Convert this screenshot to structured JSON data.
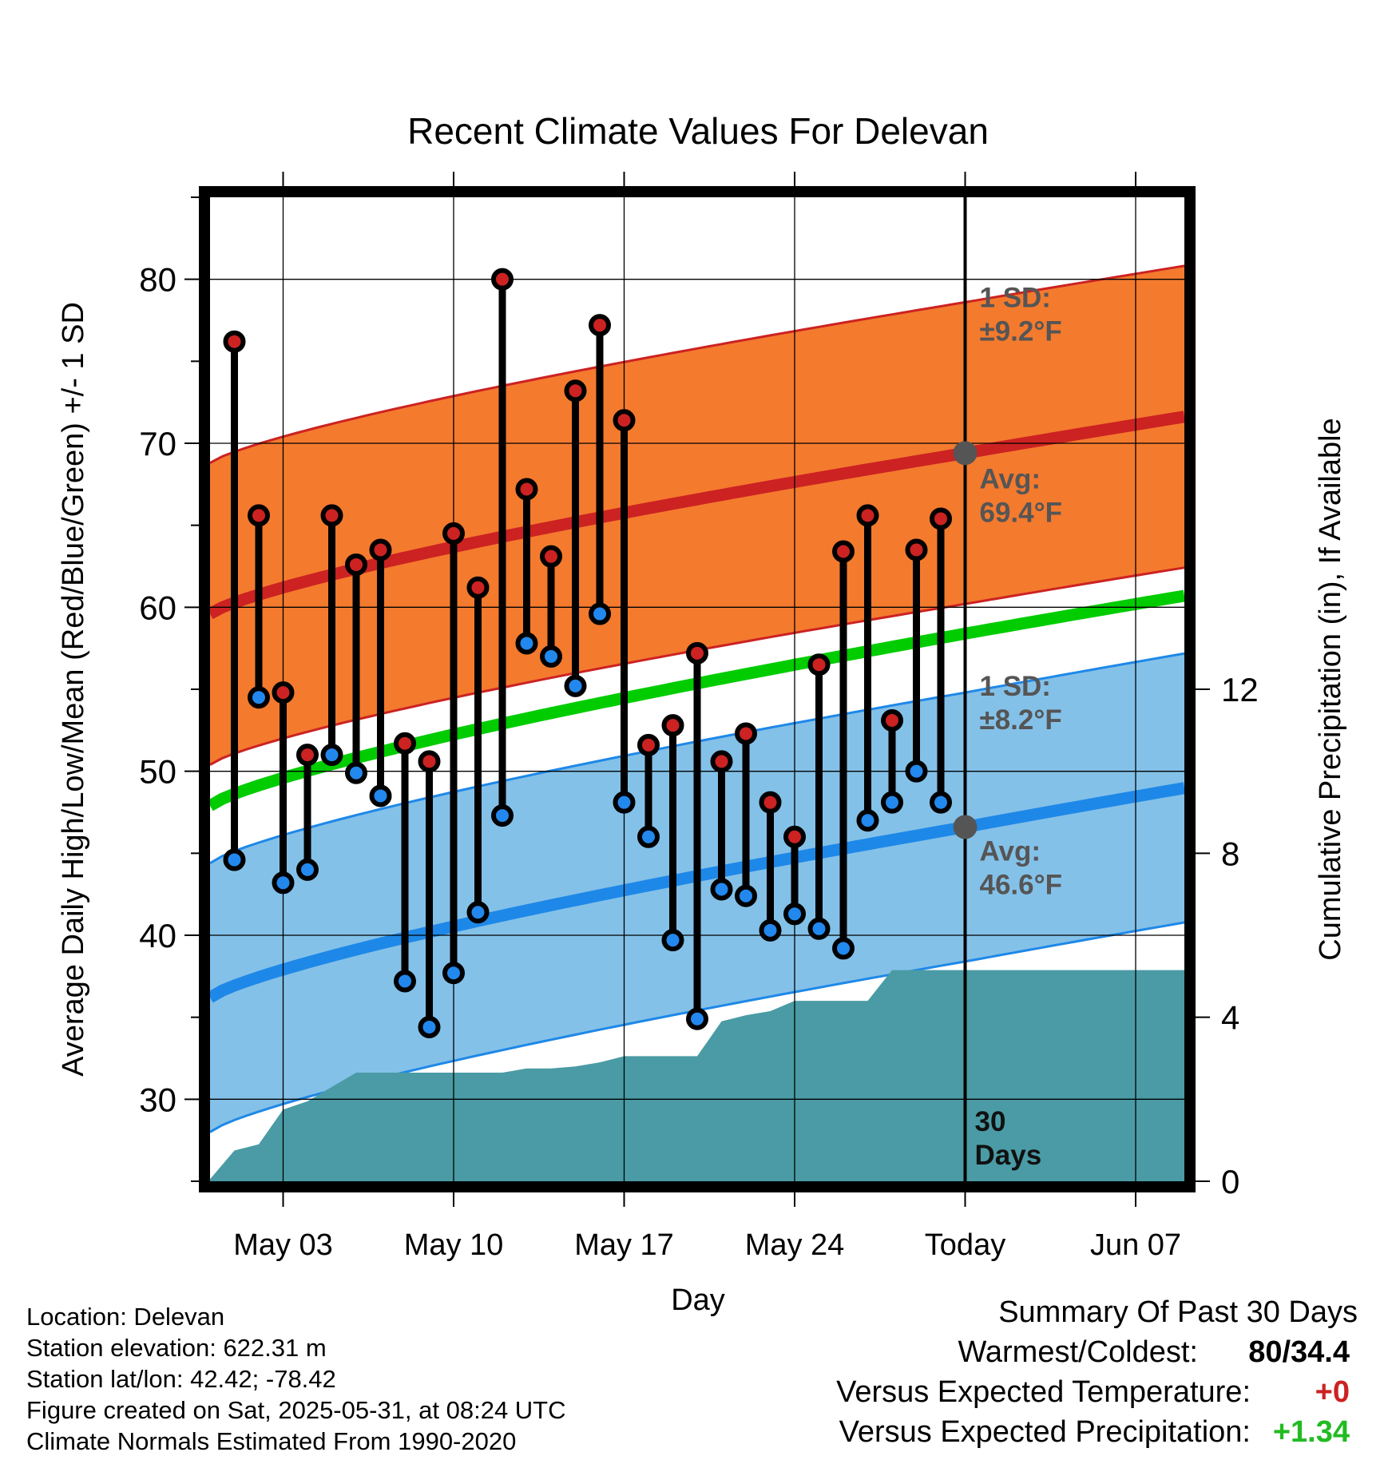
{
  "chart_data": {
    "type": "line",
    "title": "Recent Climate Values For Delevan",
    "xlabel": "Day",
    "ylabel": "Average Daily High/Low/Mean (Red/Blue/Green) +/- 1 SD",
    "ylabel_right": "Cumulative Precipitation (in), If Available",
    "x_ticks": [
      "May 03",
      "May 10",
      "May 17",
      "May 24",
      "Today",
      "Jun 07"
    ],
    "y_ticks": [
      30,
      40,
      50,
      60,
      70,
      80
    ],
    "y_right_ticks": [
      0,
      4,
      8,
      12
    ],
    "xlim": [
      "2025-04-30",
      "2025-06-09"
    ],
    "ylim": [
      25,
      85
    ],
    "y_right_lim": [
      0,
      24
    ],
    "today": "2025-05-31",
    "today_label": "Today",
    "window_label": [
      "30",
      "Days"
    ],
    "dates": [
      "2025-05-01",
      "2025-05-02",
      "2025-05-03",
      "2025-05-04",
      "2025-05-05",
      "2025-05-06",
      "2025-05-07",
      "2025-05-08",
      "2025-05-09",
      "2025-05-10",
      "2025-05-11",
      "2025-05-12",
      "2025-05-13",
      "2025-05-14",
      "2025-05-15",
      "2025-05-16",
      "2025-05-17",
      "2025-05-18",
      "2025-05-19",
      "2025-05-20",
      "2025-05-21",
      "2025-05-22",
      "2025-05-23",
      "2025-05-24",
      "2025-05-25",
      "2025-05-26",
      "2025-05-27",
      "2025-05-28",
      "2025-05-29",
      "2025-05-30"
    ],
    "series": [
      {
        "name": "High",
        "color": "#cc2222",
        "values": [
          76.2,
          65.6,
          54.8,
          51.0,
          65.6,
          62.6,
          63.5,
          51.7,
          50.6,
          64.5,
          61.2,
          80.0,
          67.2,
          63.1,
          73.2,
          77.2,
          71.4,
          51.6,
          52.8,
          57.2,
          50.6,
          52.3,
          48.1,
          46.0,
          56.5,
          63.4,
          65.6,
          53.1,
          63.5,
          65.4
        ]
      },
      {
        "name": "Low",
        "color": "#2288ee",
        "values": [
          44.6,
          54.5,
          43.2,
          44.0,
          51.0,
          49.9,
          48.5,
          37.2,
          34.4,
          37.7,
          41.4,
          47.3,
          57.8,
          57.0,
          55.2,
          59.6,
          48.1,
          46.0,
          39.7,
          34.9,
          42.8,
          42.4,
          40.3,
          41.3,
          40.4,
          39.2,
          47.0,
          48.1,
          50.0,
          48.1
        ]
      }
    ],
    "normals": {
      "high": {
        "start": 59.6,
        "today": 69.4,
        "end": 71.9,
        "sd": 9.2,
        "color": "#cc2222",
        "band_color": "#f47a2e"
      },
      "low": {
        "start": 36.2,
        "today": 46.6,
        "end": 49.4,
        "sd": 8.2,
        "color": "#1e88e8",
        "band_color": "#84c1e8"
      },
      "mean": {
        "start": 47.9,
        "end": 60.7,
        "color": "#00cc00"
      }
    },
    "annotations": {
      "high_sd": [
        "1 SD:",
        "±9.2°F"
      ],
      "high_avg": [
        "Avg:",
        "69.4°F"
      ],
      "low_sd": [
        "1 SD:",
        "±8.2°F"
      ],
      "low_avg": [
        "Avg:",
        "46.6°F"
      ]
    },
    "precip": {
      "color": "#4a9ba5",
      "dates": [
        "2025-04-30",
        "2025-05-01",
        "2025-05-02",
        "2025-05-03",
        "2025-05-04",
        "2025-05-05",
        "2025-05-06",
        "2025-05-07",
        "2025-05-08",
        "2025-05-09",
        "2025-05-10",
        "2025-05-11",
        "2025-05-12",
        "2025-05-13",
        "2025-05-14",
        "2025-05-15",
        "2025-05-16",
        "2025-05-17",
        "2025-05-18",
        "2025-05-19",
        "2025-05-20",
        "2025-05-21",
        "2025-05-22",
        "2025-05-23",
        "2025-05-24",
        "2025-05-25",
        "2025-05-26",
        "2025-05-27",
        "2025-05-28",
        "2025-05-29",
        "2025-05-30",
        "2025-05-31",
        "2025-06-09"
      ],
      "values": [
        0.05,
        0.75,
        0.9,
        1.75,
        1.95,
        2.3,
        2.65,
        2.65,
        2.65,
        2.65,
        2.65,
        2.65,
        2.65,
        2.75,
        2.75,
        2.8,
        2.9,
        3.05,
        3.05,
        3.05,
        3.05,
        3.9,
        4.05,
        4.15,
        4.4,
        4.4,
        4.4,
        4.4,
        5.15,
        5.15,
        5.15,
        5.15,
        5.15
      ]
    }
  },
  "footer": {
    "location": "Location: Delevan",
    "elevation": "Station elevation: 622.31 m",
    "latlon": "Station lat/lon: 42.42; -78.42",
    "created": "Figure created on Sat, 2025-05-31, at 08:24 UTC",
    "normals": "Climate Normals Estimated From 1990-2020"
  },
  "summary": {
    "title": "Summary Of Past 30 Days",
    "warmest_label": "Warmest/Coldest:",
    "warmest_value": "80/34.4",
    "temp_label": "Versus Expected Temperature:",
    "temp_value": "+0",
    "temp_color": "#cc2222",
    "precip_label": "Versus Expected Precipitation:",
    "precip_value": "+1.34",
    "precip_color": "#22bb22"
  }
}
